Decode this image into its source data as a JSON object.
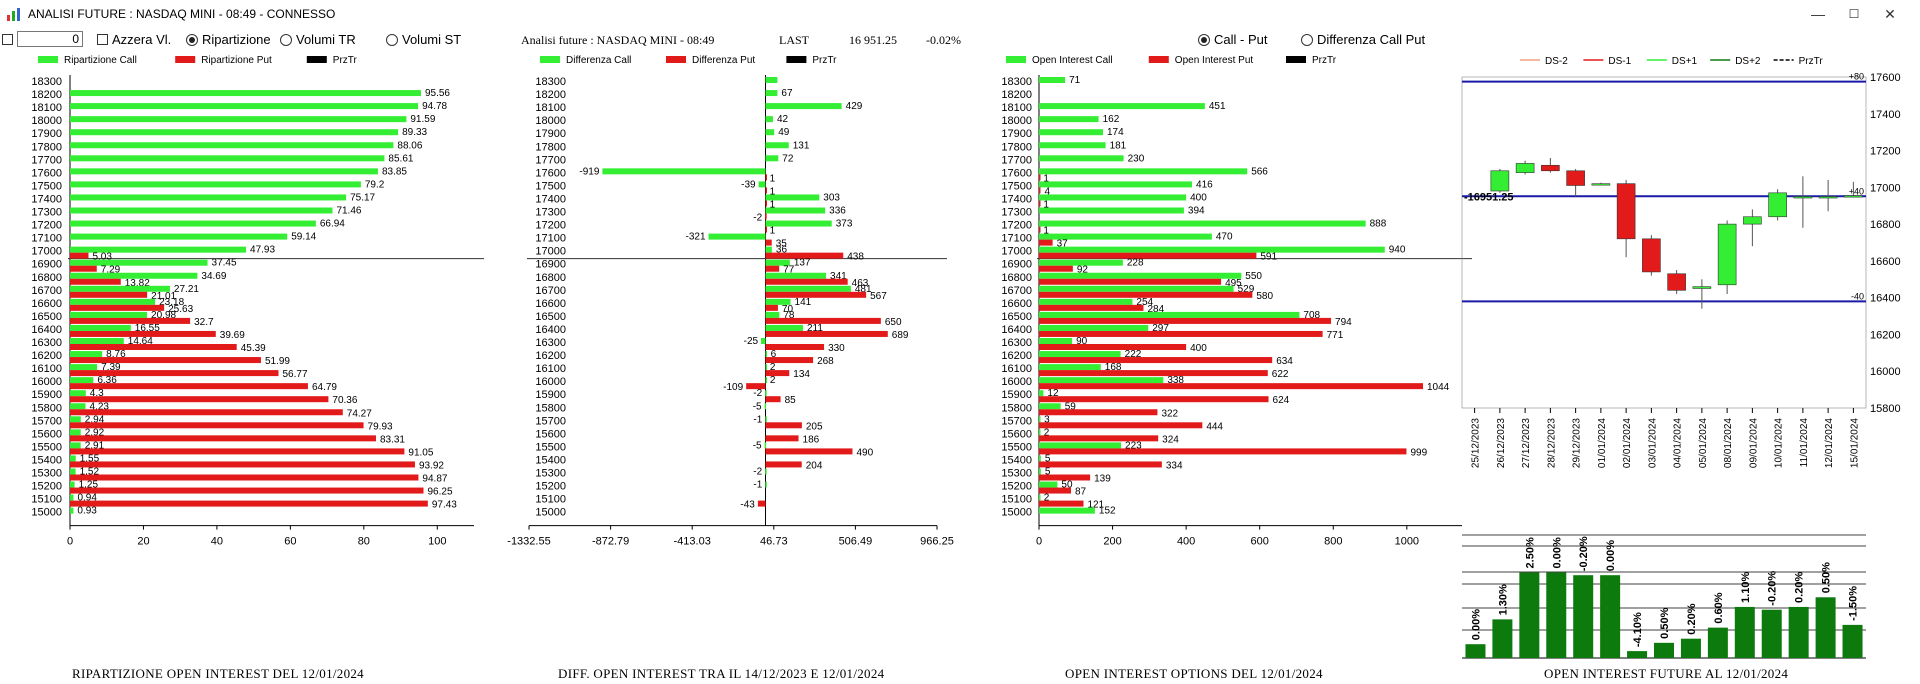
{
  "window": {
    "title": "ANALISI FUTURE : NASDAQ MINI - 08:49 - CONNESSO",
    "minimize": "—",
    "maximize": "☐",
    "close": "✕"
  },
  "toolbar": {
    "value": "0",
    "azzera": "Azzera Vl.",
    "ripartizione": "Ripartizione",
    "volumi_tr": "Volumi TR",
    "volumi_st": "Volumi ST",
    "ripartizione_selected": true
  },
  "header": {
    "label": "Analisi future : NASDAQ MINI - 08:49",
    "last_label": "LAST",
    "last_value": "16 951.25",
    "change": "-0.02%"
  },
  "options_mode": {
    "call_put": "Call - Put",
    "diff_call_put": "Differenza Call Put",
    "call_put_selected": true
  },
  "colors": {
    "call": "#33ee33",
    "put": "#e21a1a",
    "prztr": "#000000",
    "axis_line": "#1a1aa8",
    "future_bar": "#0d7a0d"
  },
  "strikes": [
    "18300",
    "18200",
    "18100",
    "18000",
    "17900",
    "17800",
    "17700",
    "17600",
    "17500",
    "17400",
    "17300",
    "17200",
    "17100",
    "17000",
    "16900",
    "16800",
    "16700",
    "16600",
    "16500",
    "16400",
    "16300",
    "16200",
    "16100",
    "16000",
    "15900",
    "15800",
    "15700",
    "15600",
    "15500",
    "15400",
    "15300",
    "15200",
    "15100",
    "15000"
  ],
  "captions": {
    "p1": "RIPARTIZIONE OPEN INTEREST DEL 12/01/2024",
    "p2": "DIFF. OPEN INTEREST TRA IL 14/12/2023 E 12/01/2024",
    "p3": "OPEN INTEREST OPTIONS DEL 12/01/2024",
    "p4": "OPEN INTEREST FUTURE AL 12/01/2024"
  },
  "chart_data": [
    {
      "type": "bar",
      "legend": [
        "Ripartizione Call",
        "Ripartizione Put",
        "PrzTr"
      ],
      "x_ticks": [
        "0",
        "20",
        "40",
        "60",
        "80",
        "100"
      ],
      "xlim": [
        0,
        110
      ],
      "prztr_level": 17000,
      "series": [
        {
          "name": "Ripartizione Call",
          "values": [
            0,
            95.56,
            94.78,
            91.59,
            89.33,
            88.06,
            85.61,
            83.85,
            79.2,
            75.17,
            71.46,
            66.94,
            59.14,
            47.93,
            37.45,
            34.69,
            27.21,
            23.18,
            20.98,
            16.55,
            14.64,
            8.76,
            7.39,
            6.36,
            4.3,
            4.23,
            2.94,
            2.92,
            2.91,
            1.55,
            1.52,
            1.25,
            0.94,
            0.93
          ],
          "labels": [
            "",
            "95.56",
            "94.78",
            "91.59",
            "89.33",
            "88.06",
            "85.61",
            "83.85",
            "79.2",
            "75.17",
            "71.46",
            "66.94",
            "59.14",
            "47.93",
            "37.45",
            "34.69",
            "27.21",
            "23.18",
            "20.98",
            "16.55",
            "14.64",
            "8.76",
            "7.39",
            "6.36",
            "4.3",
            "4.23",
            "2.94",
            "2.92",
            "2.91",
            "1.55",
            "1.52",
            "1.25",
            "0.94",
            "0.93"
          ]
        },
        {
          "name": "Ripartizione Put",
          "values": [
            0,
            0,
            0,
            0,
            0,
            0,
            0,
            0,
            0,
            0,
            0,
            0,
            0,
            5.03,
            7.29,
            13.82,
            21.01,
            25.63,
            32.7,
            39.69,
            45.39,
            51.99,
            56.77,
            64.79,
            70.36,
            74.27,
            79.93,
            83.31,
            91.05,
            93.92,
            94.87,
            96.25,
            97.43,
            0
          ],
          "labels": [
            "",
            "",
            "",
            "",
            "",
            "",
            "",
            "",
            "",
            "",
            "",
            "",
            "",
            "5.03",
            "7.29",
            "13.82",
            "21.01",
            "25.63",
            "32.7",
            "39.69",
            "45.39",
            "51.99",
            "56.77",
            "64.79",
            "70.36",
            "74.27",
            "79.93",
            "83.31",
            "91.05",
            "93.92",
            "94.87",
            "96.25",
            "97.43",
            ""
          ]
        }
      ]
    },
    {
      "type": "bar",
      "legend": [
        "Differenza Call",
        "Differenza Put",
        "PrzTr"
      ],
      "x_ticks": [
        "-1332.55",
        "-872.79",
        "-413.03",
        "46.73",
        "506.49",
        "966.25"
      ],
      "xlim": [
        -1332.55,
        966.25
      ],
      "prztr_level": 17000,
      "series": [
        {
          "name": "Differenza Call",
          "values": [
            67,
            67,
            429,
            42,
            49,
            131,
            72,
            -919,
            -39,
            303,
            336,
            373,
            -321,
            36,
            137,
            341,
            481,
            141,
            78,
            211,
            -25,
            6,
            2,
            2,
            -2,
            -5,
            -1,
            0,
            -5,
            0,
            -2,
            -1,
            0,
            0
          ],
          "labels": [
            "",
            "67",
            "429",
            "42",
            "49",
            "131",
            "72",
            "-919",
            "-39",
            "303",
            "336",
            "373",
            "-321",
            "36",
            "137",
            "341",
            "481",
            "141",
            "78",
            "211",
            "-25",
            "6",
            "2",
            "2",
            "-2",
            "-5",
            "-1",
            "",
            "-5",
            "",
            "-2",
            "-1",
            "",
            ""
          ]
        },
        {
          "name": "Differenza Put",
          "values": [
            0,
            0,
            0,
            0,
            0,
            0,
            0,
            1,
            1,
            1,
            -2,
            1,
            35,
            438,
            77,
            463,
            567,
            70,
            650,
            689,
            330,
            268,
            134,
            -109,
            85,
            0,
            205,
            186,
            490,
            204,
            0,
            0,
            -43,
            0
          ],
          "labels": [
            "",
            "",
            "",
            "",
            "",
            "",
            "",
            "1",
            "1",
            "1",
            "-2",
            "1",
            "35",
            "438",
            "77",
            "463",
            "567",
            "70",
            "650",
            "689",
            "330",
            "268",
            "134",
            "-109",
            "85",
            "",
            "205",
            "186",
            "490",
            "204",
            "",
            "",
            "-43",
            ""
          ]
        }
      ]
    },
    {
      "type": "bar",
      "legend": [
        "Open Interest Call",
        "Open Interest Put",
        "PrzTr"
      ],
      "x_ticks": [
        "0",
        "200",
        "400",
        "600",
        "800",
        "1000"
      ],
      "xlim": [
        0,
        1150
      ],
      "prztr_level": 17000,
      "series": [
        {
          "name": "Open Interest Call",
          "values": [
            71,
            0,
            451,
            162,
            174,
            181,
            230,
            566,
            416,
            400,
            394,
            888,
            470,
            940,
            228,
            550,
            529,
            254,
            708,
            297,
            90,
            222,
            168,
            338,
            12,
            59,
            3,
            2,
            223,
            5,
            5,
            50,
            2,
            152
          ],
          "labels": [
            "71",
            "",
            "451",
            "162",
            "174",
            "181",
            "230",
            "566",
            "416",
            "400",
            "394",
            "888",
            "470",
            "940",
            "228",
            "550",
            "529",
            "254",
            "708",
            "297",
            "90",
            "222",
            "168",
            "338",
            "12",
            "59",
            "3",
            "2",
            "223",
            "5",
            "5",
            "50",
            "2",
            "152"
          ]
        },
        {
          "name": "Open Interest Put",
          "values": [
            0,
            0,
            0,
            0,
            0,
            0,
            0,
            1,
            4,
            1,
            0,
            1,
            37,
            591,
            92,
            495,
            580,
            284,
            794,
            771,
            400,
            634,
            622,
            1044,
            624,
            322,
            444,
            324,
            999,
            334,
            139,
            87,
            121,
            0
          ],
          "labels": [
            "",
            "",
            "",
            "",
            "",
            "",
            "",
            "1",
            "4",
            "1",
            "",
            "1",
            "37",
            "591",
            "92",
            "495",
            "580",
            "284",
            "794",
            "771",
            "400",
            "634",
            "622",
            "1044",
            "624",
            "322",
            "444",
            "324",
            "999",
            "334",
            "139",
            "87",
            "121",
            ""
          ]
        }
      ]
    },
    {
      "type": "candlestick",
      "legend": [
        "DS-2",
        "DS-1",
        "DS+1",
        "DS+2",
        "PrzTr"
      ],
      "y_ticks": [
        "17600",
        "17400",
        "17200",
        "17000",
        "16800",
        "16600",
        "16400",
        "16200",
        "16000",
        "15800"
      ],
      "ylim": [
        15800,
        17600
      ],
      "dates": [
        "25/12/2023",
        "26/12/2023",
        "27/12/2023",
        "28/12/2023",
        "29/12/2023",
        "01/01/2024",
        "02/01/2024",
        "03/01/2024",
        "04/01/2024",
        "05/01/2024",
        "08/01/2024",
        "09/01/2024",
        "10/01/2024",
        "11/01/2024",
        "12/01/2024",
        "15/01/2024"
      ],
      "candles": [
        {
          "o": null,
          "c": null,
          "h": null,
          "l": null
        },
        {
          "o": 16980,
          "c": 17090,
          "h": 17100,
          "l": 16970
        },
        {
          "o": 17080,
          "c": 17130,
          "h": 17145,
          "l": 17070
        },
        {
          "o": 17120,
          "c": 17090,
          "h": 17160,
          "l": 17080
        },
        {
          "o": 17090,
          "c": 17010,
          "h": 17100,
          "l": 16950
        },
        {
          "o": 17020,
          "c": 17020,
          "h": 17025,
          "l": 17015
        },
        {
          "o": 17020,
          "c": 16720,
          "h": 17040,
          "l": 16620
        },
        {
          "o": 16720,
          "c": 16540,
          "h": 16740,
          "l": 16520
        },
        {
          "o": 16530,
          "c": 16440,
          "h": 16550,
          "l": 16420
        },
        {
          "o": 16450,
          "c": 16460,
          "h": 16500,
          "l": 16340
        },
        {
          "o": 16470,
          "c": 16800,
          "h": 16820,
          "l": 16420
        },
        {
          "o": 16800,
          "c": 16840,
          "h": 16880,
          "l": 16680
        },
        {
          "o": 16840,
          "c": 16970,
          "h": 16990,
          "l": 16820
        },
        {
          "o": 16950,
          "c": 16950,
          "h": 17060,
          "l": 16780
        },
        {
          "o": 16950,
          "c": 16950,
          "h": 17040,
          "l": 16870
        },
        {
          "o": 16950,
          "c": 16955,
          "h": 17030,
          "l": 16950
        }
      ],
      "last_label": "-16951.25",
      "levels": [
        {
          "value": 17575,
          "label": "+80"
        },
        {
          "value": 16951.25,
          "label": "+40"
        },
        {
          "value": 16380,
          "label": "-40"
        }
      ]
    },
    {
      "type": "bar",
      "bars": [
        0.1,
        0.28,
        0.62,
        0.62,
        0.6,
        0.6,
        0.05,
        0.11,
        0.14,
        0.22,
        0.37,
        0.35,
        0.37,
        0.44,
        0.24
      ],
      "labels": [
        "0.00%",
        "1.30%",
        "2.50%",
        "0.00%",
        "-0.20%",
        "0.00%",
        "-4.10%",
        "0.50%",
        "0.20%",
        "0.60%",
        "1.10%",
        "-0.20%",
        "0.20%",
        "0.50%",
        "-1.50%"
      ]
    }
  ]
}
